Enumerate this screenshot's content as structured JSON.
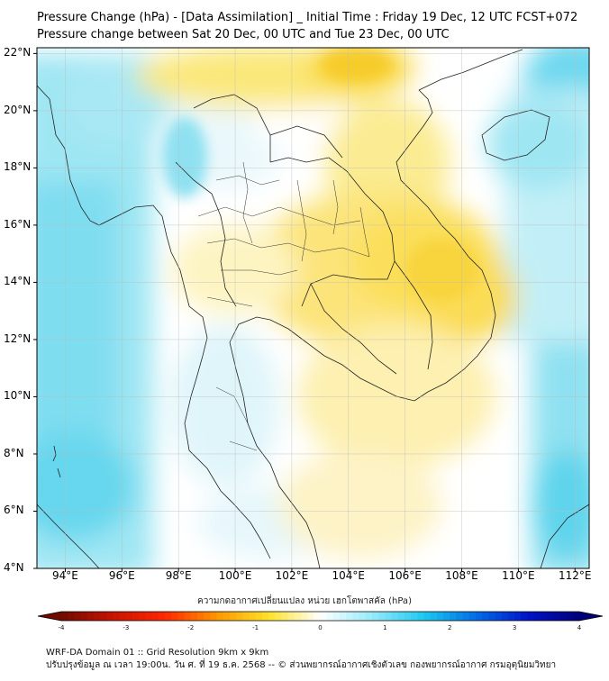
{
  "title": {
    "line1": "Pressure Change (hPa) - [Data Assimilation] _ Initial Time : Friday 19 Dec, 12 UTC FCST+072",
    "line2": "Pressure change between Sat 20 Dec, 00 UTC and Tue 23 Dec, 00 UTC"
  },
  "map": {
    "lon_range": [
      93,
      112.5
    ],
    "lat_range": [
      4,
      22.2
    ],
    "lat_ticks": [
      "22°N",
      "20°N",
      "18°N",
      "16°N",
      "14°N",
      "12°N",
      "10°N",
      "8°N",
      "6°N",
      "4°N"
    ],
    "lon_ticks": [
      "94°E",
      "96°E",
      "98°E",
      "100°E",
      "102°E",
      "104°E",
      "106°E",
      "108°E",
      "110°E",
      "112°E"
    ],
    "grid": true
  },
  "colorbar": {
    "title": "ความกดอากาศเปลี่ยนแปลง หน่วย เฮกโตพาสคัล (hPa)",
    "ticks": [
      "-4",
      "-3",
      "-2",
      "-1",
      "0",
      "1",
      "2",
      "3",
      "4"
    ],
    "range": [
      -4,
      4
    ]
  },
  "footer": {
    "line1": "WRF-DA Domain 01 :: Grid Resolution 9km x 9km",
    "line2": "ปรับปรุงข้อมูล ณ เวลา 19:00น. วัน ศ. ที่ 19 ธ.ค. 2568 -- © ส่วนพยากรณ์อากาศเชิงตัวเลข กองพยากรณ์อากาศ กรมอุตุนิยมวิทยา"
  }
}
